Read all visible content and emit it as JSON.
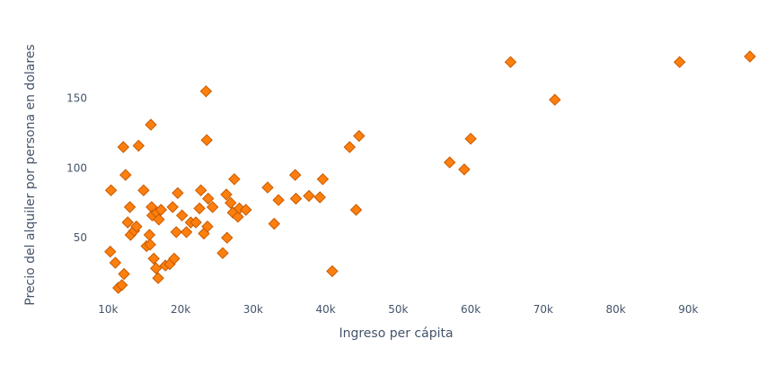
{
  "chart_data": {
    "type": "scatter",
    "title": "",
    "xlabel": "Ingreso per cápita",
    "ylabel": "Precio del alquiler por persona en dolares",
    "xlim": [
      5000,
      98500
    ],
    "ylim": [
      5,
      198
    ],
    "x_ticks": [
      10000,
      20000,
      30000,
      40000,
      50000,
      60000,
      70000,
      80000,
      90000
    ],
    "x_tick_labels": [
      "10k",
      "20k",
      "30k",
      "40k",
      "50k",
      "60k",
      "70k",
      "80k",
      "90k"
    ],
    "y_ticks": [
      50,
      100,
      150
    ],
    "y_tick_labels": [
      "50",
      "100",
      "150"
    ],
    "grid": false,
    "marker": "diamond",
    "color": "#ff7f0e",
    "points": [
      [
        10400,
        84
      ],
      [
        10300,
        40
      ],
      [
        11000,
        32
      ],
      [
        11400,
        14
      ],
      [
        11900,
        16
      ],
      [
        12200,
        24
      ],
      [
        12100,
        115
      ],
      [
        12400,
        95
      ],
      [
        12700,
        61
      ],
      [
        13000,
        72
      ],
      [
        13100,
        52
      ],
      [
        13600,
        55
      ],
      [
        13900,
        58
      ],
      [
        14200,
        116
      ],
      [
        14900,
        84
      ],
      [
        15300,
        44
      ],
      [
        15700,
        52
      ],
      [
        15800,
        45
      ],
      [
        15900,
        131
      ],
      [
        16000,
        72
      ],
      [
        16100,
        66
      ],
      [
        16300,
        35
      ],
      [
        16600,
        28
      ],
      [
        16700,
        68
      ],
      [
        16900,
        21
      ],
      [
        17000,
        63
      ],
      [
        17300,
        70
      ],
      [
        17900,
        30
      ],
      [
        18500,
        31
      ],
      [
        18900,
        72
      ],
      [
        19100,
        35
      ],
      [
        19400,
        54
      ],
      [
        19600,
        82
      ],
      [
        20200,
        66
      ],
      [
        20800,
        54
      ],
      [
        21400,
        61
      ],
      [
        22100,
        61
      ],
      [
        22600,
        71
      ],
      [
        22800,
        84
      ],
      [
        23200,
        53
      ],
      [
        23500,
        155
      ],
      [
        23600,
        120
      ],
      [
        23700,
        58
      ],
      [
        23800,
        78
      ],
      [
        24400,
        72
      ],
      [
        25800,
        39
      ],
      [
        26300,
        81
      ],
      [
        26400,
        50
      ],
      [
        26900,
        75
      ],
      [
        27200,
        68
      ],
      [
        27400,
        92
      ],
      [
        27900,
        65
      ],
      [
        28100,
        71
      ],
      [
        29000,
        70
      ],
      [
        32000,
        86
      ],
      [
        32900,
        60
      ],
      [
        33500,
        77
      ],
      [
        35800,
        95
      ],
      [
        35900,
        78
      ],
      [
        37700,
        80
      ],
      [
        39200,
        79
      ],
      [
        39600,
        92
      ],
      [
        40900,
        26
      ],
      [
        43300,
        115
      ],
      [
        44200,
        70
      ],
      [
        44600,
        123
      ],
      [
        57100,
        104
      ],
      [
        59100,
        99
      ],
      [
        60000,
        121
      ],
      [
        65500,
        176
      ],
      [
        71600,
        149
      ],
      [
        88800,
        176
      ],
      [
        98500,
        180
      ]
    ]
  }
}
